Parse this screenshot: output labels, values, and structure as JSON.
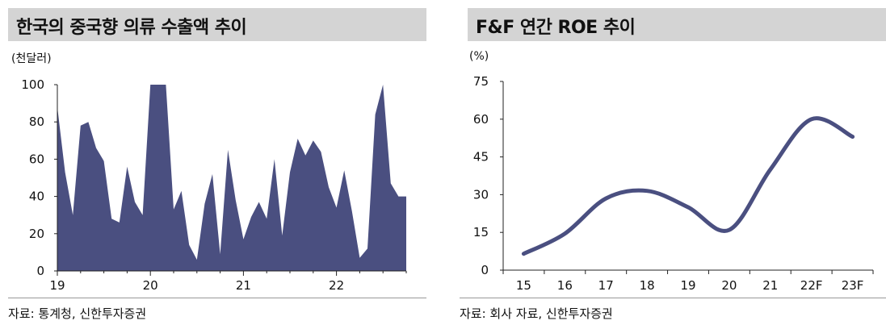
{
  "chart_data": [
    {
      "type": "area",
      "title": "한국의 중국향 의류 수출액 추이",
      "unit_label": "(천달러)",
      "source": "자료: 통계청, 신한투자증권",
      "ylim": [
        0,
        100
      ],
      "y_ticks": [
        "0",
        "20",
        "40",
        "60",
        "80",
        "100"
      ],
      "x_ticks": [
        "19",
        "20",
        "21",
        "22"
      ],
      "color": "#4a4f80",
      "series": [
        {
          "x": [
            2019.0,
            2019.083,
            2019.167,
            2019.25,
            2019.333,
            2019.417,
            2019.5,
            2019.583,
            2019.667,
            2019.75,
            2019.833,
            2019.917,
            2020.0,
            2020.083,
            2020.167,
            2020.25,
            2020.333,
            2020.417,
            2020.5,
            2020.583,
            2020.667,
            2020.75,
            2020.833,
            2020.917,
            2021.0,
            2021.083,
            2021.167,
            2021.25,
            2021.333,
            2021.417,
            2021.5,
            2021.583,
            2021.667,
            2021.75,
            2021.833,
            2021.917,
            2022.0,
            2022.083,
            2022.167,
            2022.25,
            2022.333,
            2022.417,
            2022.5,
            2022.583,
            2022.667
          ],
          "values": [
            88,
            53,
            30,
            78,
            80,
            66,
            59,
            28,
            26,
            56,
            37,
            30,
            100,
            100,
            100,
            33,
            43,
            14,
            6,
            36,
            52,
            9,
            65,
            38,
            17,
            29,
            37,
            28,
            60,
            19,
            53,
            71,
            62,
            70,
            64,
            45,
            34,
            54,
            32,
            7,
            12,
            84,
            100,
            47,
            40
          ]
        }
      ]
    },
    {
      "type": "line",
      "title": "F&F 연간 ROE 추이",
      "unit_label": "(%)",
      "source": "자료: 회사 자료, 신한투자증권",
      "ylim": [
        0,
        75
      ],
      "y_ticks": [
        "0",
        "15",
        "30",
        "45",
        "60",
        "75"
      ],
      "categories": [
        "15",
        "16",
        "17",
        "18",
        "19",
        "20",
        "21",
        "22F",
        "23F"
      ],
      "color": "#4a4f80",
      "series": [
        {
          "values": [
            6.5,
            14.5,
            28.5,
            31.5,
            25,
            16,
            40,
            60,
            53
          ]
        }
      ]
    }
  ]
}
